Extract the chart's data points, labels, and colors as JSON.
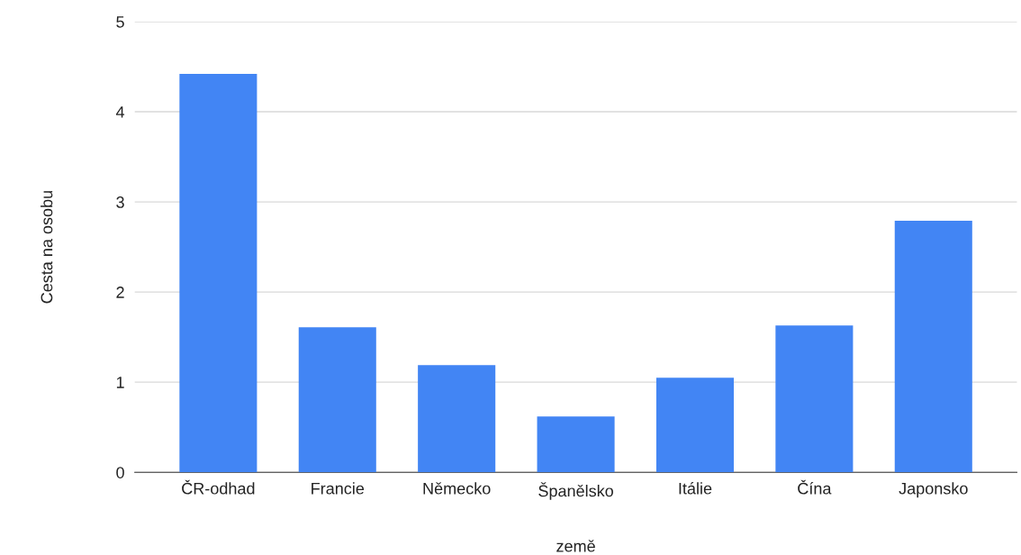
{
  "chart_data": {
    "type": "bar",
    "xlabel": "země",
    "ylabel": "Cesta na osobu",
    "categories": [
      "ČR-odhad",
      "Francie",
      "Německo",
      "Španělsko",
      "Itálie",
      "Čína",
      "Japonsko"
    ],
    "values": [
      4.42,
      1.61,
      1.19,
      0.62,
      1.05,
      1.63,
      2.79
    ],
    "color": "#4285f4",
    "ylim": [
      0,
      5
    ],
    "yticks": [
      0,
      1,
      2,
      3,
      4,
      5
    ],
    "grid": "y"
  }
}
